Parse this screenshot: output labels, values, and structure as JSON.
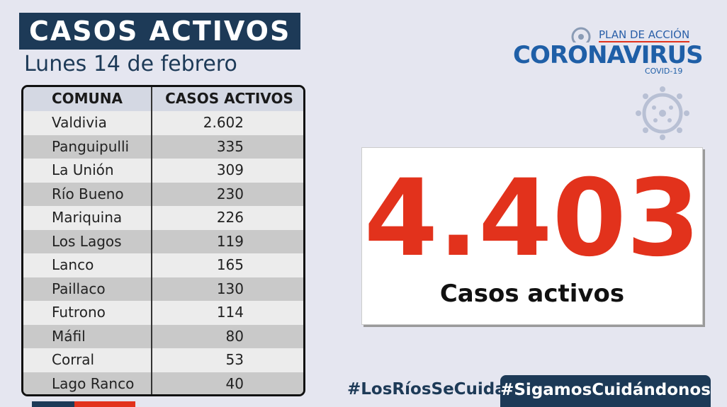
{
  "header": {
    "title": "CASOS ACTIVOS",
    "date": "Lunes 14 de febrero"
  },
  "logo": {
    "line1": "PLAN DE ACCIÓN",
    "line2": "CORONAVIRUS",
    "line3": "COVID-19"
  },
  "table": {
    "columns": [
      "COMUNA",
      "CASOS ACTIVOS"
    ],
    "rows": [
      [
        "Valdivia",
        "2.602"
      ],
      [
        "Panguipulli",
        "335"
      ],
      [
        "La Unión",
        "309"
      ],
      [
        "Río Bueno",
        "230"
      ],
      [
        "Mariquina",
        "226"
      ],
      [
        "Los Lagos",
        "119"
      ],
      [
        "Lanco",
        "165"
      ],
      [
        "Paillaco",
        "130"
      ],
      [
        "Futrono",
        "114"
      ],
      [
        "Máfil",
        "80"
      ],
      [
        "Corral",
        "53"
      ],
      [
        "Lago Ranco",
        "40"
      ]
    ]
  },
  "total": {
    "value": "4.403",
    "label": "Casos activos"
  },
  "hashtags": [
    "#LosRíosSeCuida",
    "#SigamosCuidándonos"
  ]
}
